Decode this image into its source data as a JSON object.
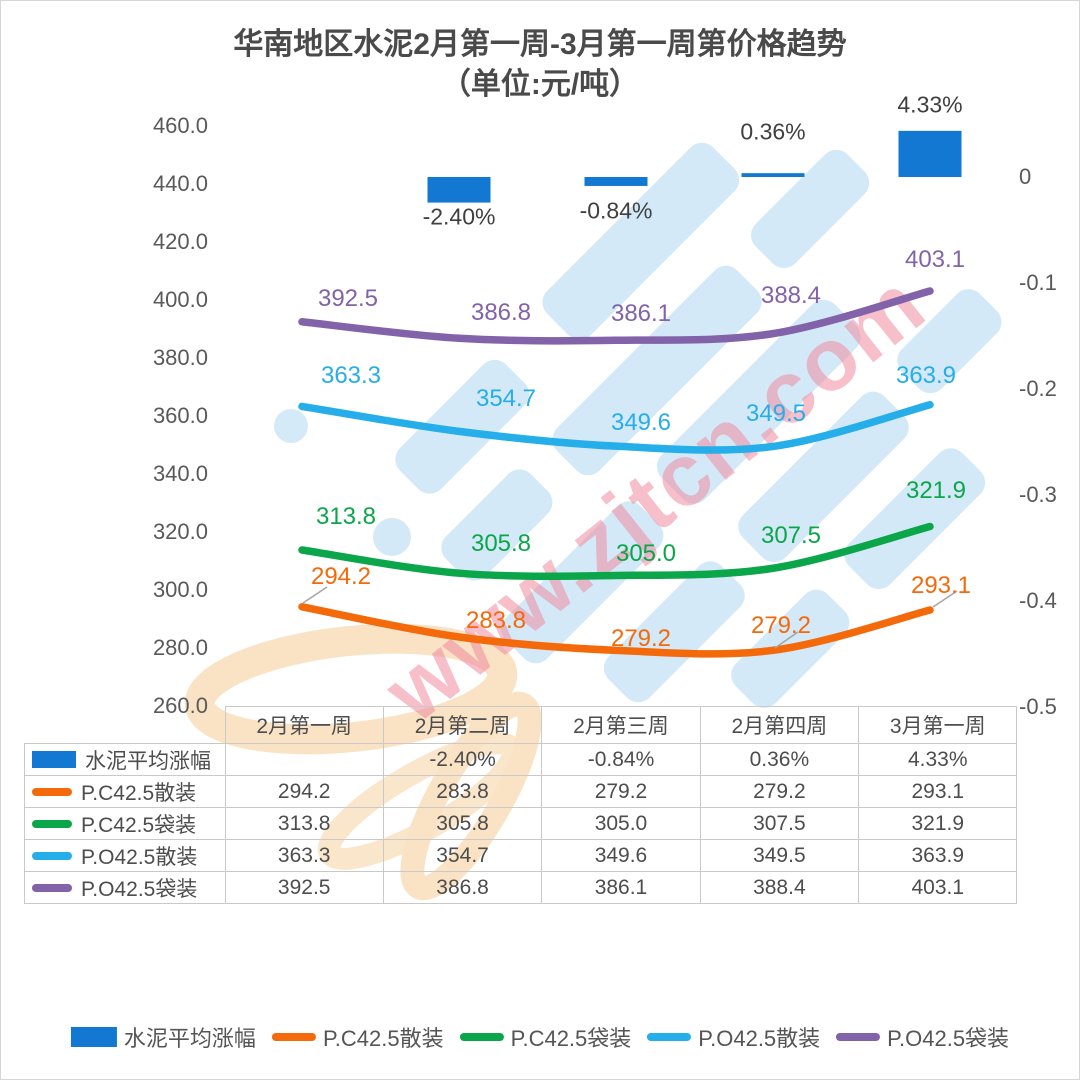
{
  "title": {
    "line1": "华南地区水泥2月第一周-3月第一周第价格趋势",
    "line2": "（单位:元/吨）"
  },
  "watermark": {
    "text": "www.zjtcn.com"
  },
  "colors": {
    "bar_blue": "#1278D2",
    "orange": "#F4690A",
    "green": "#0CA64A",
    "cyan": "#25AEEA",
    "purple": "#8262A8",
    "axis_text": "#595959",
    "watermark_blue": "#cde6f7",
    "watermark_pink": "#ef8ba0",
    "watermark_peach": "#fae0bf"
  },
  "chart_data": {
    "type": "combo-bar-line",
    "categories": [
      "2月第一周",
      "2月第二周",
      "2月第三周",
      "2月第四周",
      "3月第一周"
    ],
    "bar_series": {
      "name": "水泥平均涨幅",
      "color": "#1278D2",
      "values": [
        null,
        -2.4,
        -0.84,
        0.36,
        4.33
      ],
      "labels": [
        "",
        "-2.40%",
        "-0.84%",
        "0.36%",
        "4.33%"
      ]
    },
    "line_series": [
      {
        "name": "P.C42.5散装",
        "color": "#F4690A",
        "values": [
          294.2,
          283.8,
          279.2,
          279.2,
          293.1
        ],
        "labels": [
          "294.2",
          "283.8",
          "279.2",
          "279.2",
          "293.1"
        ]
      },
      {
        "name": "P.C42.5袋装",
        "color": "#0CA64A",
        "values": [
          313.8,
          305.8,
          305.0,
          307.5,
          321.9
        ],
        "labels": [
          "313.8",
          "305.8",
          "305.0",
          "307.5",
          "321.9"
        ]
      },
      {
        "name": "P.O42.5散装",
        "color": "#25AEEA",
        "values": [
          363.3,
          354.7,
          349.6,
          349.5,
          363.9
        ],
        "labels": [
          "363.3",
          "354.7",
          "349.6",
          "349.5",
          "363.9"
        ]
      },
      {
        "name": "P.O42.5袋装",
        "color": "#8262A8",
        "values": [
          392.5,
          386.8,
          386.1,
          388.4,
          403.1
        ],
        "labels": [
          "392.5",
          "386.8",
          "386.1",
          "388.4",
          "403.1"
        ]
      }
    ],
    "left_axis": {
      "min": 260,
      "max": 460,
      "step": 20,
      "tick_labels": [
        "460.0",
        "440.0",
        "420.0",
        "400.0",
        "380.0",
        "360.0",
        "340.0",
        "320.0",
        "300.0",
        "280.0",
        "260.0"
      ]
    },
    "right_axis": {
      "tick_labels": [
        "0",
        "-0.1",
        "-0.2",
        "-0.3",
        "-0.4",
        "-0.5"
      ]
    },
    "grid": false,
    "legend_position": "bottom"
  },
  "table": {
    "header": [
      "",
      "2月第一周",
      "2月第二周",
      "2月第三周",
      "2月第四周",
      "3月第一周"
    ],
    "rows": [
      {
        "swatch": "bar",
        "color": "#1278D2",
        "label": "水泥平均涨幅",
        "cells": [
          "",
          "-2.40%",
          "-0.84%",
          "0.36%",
          "4.33%"
        ]
      },
      {
        "swatch": "line",
        "color": "#F4690A",
        "label": "P.C42.5散装",
        "cells": [
          "294.2",
          "283.8",
          "279.2",
          "279.2",
          "293.1"
        ]
      },
      {
        "swatch": "line",
        "color": "#0CA64A",
        "label": "P.C42.5袋装",
        "cells": [
          "313.8",
          "305.8",
          "305.0",
          "307.5",
          "321.9"
        ]
      },
      {
        "swatch": "line",
        "color": "#25AEEA",
        "label": "P.O42.5散装",
        "cells": [
          "363.3",
          "354.7",
          "349.6",
          "349.5",
          "363.9"
        ]
      },
      {
        "swatch": "line",
        "color": "#8262A8",
        "label": "P.O42.5袋装",
        "cells": [
          "392.5",
          "386.8",
          "386.1",
          "388.4",
          "403.1"
        ]
      }
    ]
  },
  "legend": {
    "items": [
      {
        "type": "bar",
        "color": "#1278D2",
        "label": "水泥平均涨幅"
      },
      {
        "type": "line",
        "color": "#F4690A",
        "label": "P.C42.5散装"
      },
      {
        "type": "line",
        "color": "#0CA64A",
        "label": "P.C42.5袋装"
      },
      {
        "type": "line",
        "color": "#25AEEA",
        "label": "P.O42.5散装"
      },
      {
        "type": "line",
        "color": "#8262A8",
        "label": "P.O42.5袋装"
      }
    ]
  }
}
